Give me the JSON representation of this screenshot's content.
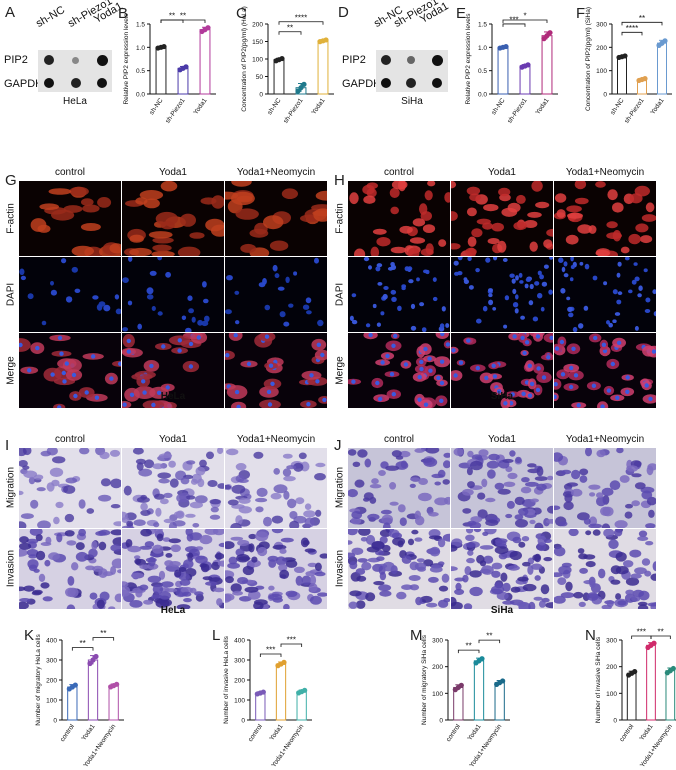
{
  "panels": {
    "A": {
      "letter": "A",
      "rows": [
        "PIP2",
        "GAPDH"
      ],
      "cols": [
        "sh-NC",
        "sh-Piezo1",
        "Yoda1"
      ],
      "cell": "HeLa"
    },
    "D": {
      "letter": "D",
      "rows": [
        "PIP2",
        "GAPDH"
      ],
      "cols": [
        "sh-NC",
        "sh-Piezo1",
        "Yoda1"
      ],
      "cell": "SiHa"
    },
    "G": {
      "letter": "G",
      "cols": [
        "control",
        "Yoda1",
        "Yoda1+Neomycin"
      ],
      "rows": [
        "F-actin",
        "DAPI",
        "Merge"
      ],
      "cell": "HeLa"
    },
    "H": {
      "letter": "H",
      "cols": [
        "control",
        "Yoda1",
        "Yoda1+Neomycin"
      ],
      "rows": [
        "F-actin",
        "DAPI",
        "Merge"
      ],
      "cell": "SiHa"
    },
    "I": {
      "letter": "I",
      "cols": [
        "control",
        "Yoda1",
        "Yoda1+Neomycin"
      ],
      "rows": [
        "Migration",
        "Invasion"
      ],
      "cell": "HeLa"
    },
    "J": {
      "letter": "J",
      "cols": [
        "control",
        "Yoda1",
        "Yoda1+Neomycin"
      ],
      "rows": [
        "Migration",
        "Invasion"
      ],
      "cell": "SiHa"
    }
  },
  "chart_data": [
    {
      "id": "B",
      "letter": "B",
      "type": "bar",
      "categories": [
        "sh-NC",
        "sh-Piezo1",
        "Yoda1"
      ],
      "values": [
        1.0,
        0.55,
        1.38
      ],
      "errors": [
        0.02,
        0.04,
        0.05
      ],
      "ylabel": "Relative PIP2 expression levels",
      "ylim": [
        0,
        1.5
      ],
      "yticks": [
        "0.0",
        "0.5",
        "1.0",
        "1.5"
      ],
      "colors": [
        "#222222",
        "#4a3aa8",
        "#b23a9b"
      ],
      "sig": [
        {
          "from": 0,
          "to": 1,
          "label": "**"
        },
        {
          "from": 0,
          "to": 2,
          "label": "**"
        }
      ]
    },
    {
      "id": "C",
      "letter": "C",
      "type": "bar",
      "categories": [
        "sh-NC",
        "sh-Piezo1",
        "Yoda1"
      ],
      "values": [
        98,
        18,
        152
      ],
      "errors": [
        4,
        12,
        3
      ],
      "ylabel": "Concentration of PIP2(pg/ml) (HeLa)",
      "ylim": [
        0,
        200
      ],
      "yticks": [
        "0",
        "50",
        "100",
        "150",
        "200"
      ],
      "colors": [
        "#222222",
        "#1f7a8c",
        "#e0b13a"
      ],
      "sig": [
        {
          "from": 0,
          "to": 1,
          "label": "**"
        },
        {
          "from": 0,
          "to": 2,
          "label": "****"
        }
      ]
    },
    {
      "id": "E",
      "letter": "E",
      "type": "bar",
      "categories": [
        "sh-NC",
        "sh-Piezo1",
        "Yoda1"
      ],
      "values": [
        1.0,
        0.6,
        1.25
      ],
      "errors": [
        0.02,
        0.03,
        0.08
      ],
      "ylabel": "Relative PIP2 expression levels",
      "ylim": [
        0,
        1.5
      ],
      "yticks": [
        "0.0",
        "0.5",
        "1.0",
        "1.5"
      ],
      "colors": [
        "#3a5fb0",
        "#6a3ab0",
        "#b02a7a"
      ],
      "sig": [
        {
          "from": 0,
          "to": 1,
          "label": "***"
        },
        {
          "from": 0,
          "to": 2,
          "label": "*"
        }
      ]
    },
    {
      "id": "F",
      "letter": "F",
      "type": "bar",
      "categories": [
        "sh-NC",
        "sh-Piezo1",
        "Yoda1"
      ],
      "values": [
        160,
        62,
        218
      ],
      "errors": [
        4,
        5,
        12
      ],
      "ylabel": "Concentration of PIP2(pg/ml) (SiHa)",
      "ylim": [
        0,
        300
      ],
      "yticks": [
        "0",
        "100",
        "200",
        "300"
      ],
      "colors": [
        "#222222",
        "#e0a050",
        "#6a9ad0"
      ],
      "sig": [
        {
          "from": 0,
          "to": 1,
          "label": "****"
        },
        {
          "from": 0,
          "to": 2,
          "label": "**"
        }
      ]
    },
    {
      "id": "K",
      "letter": "K",
      "type": "bar",
      "categories": [
        "control",
        "Yoda1",
        "Yoda1+Neomycin"
      ],
      "values": [
        165,
        300,
        172
      ],
      "errors": [
        12,
        22,
        8
      ],
      "ylabel": "Number of migratory HeLa cells",
      "ylim": [
        0,
        400
      ],
      "yticks": [
        "0",
        "100",
        "200",
        "300",
        "400"
      ],
      "colors": [
        "#3a6ab8",
        "#8a4ab0",
        "#b050a8"
      ],
      "sig": [
        {
          "from": 0,
          "to": 1,
          "label": "**"
        },
        {
          "from": 1,
          "to": 2,
          "label": "**"
        }
      ]
    },
    {
      "id": "L",
      "letter": "L",
      "type": "bar",
      "categories": [
        "control",
        "Yoda1",
        "Yoda1+Neomycin"
      ],
      "values": [
        135,
        280,
        142
      ],
      "errors": [
        6,
        10,
        8
      ],
      "ylabel": "Number of invasive HeLa cells",
      "ylim": [
        0,
        400
      ],
      "yticks": [
        "0",
        "100",
        "200",
        "300",
        "400"
      ],
      "colors": [
        "#7a5ab8",
        "#e0a030",
        "#40b0a8"
      ],
      "sig": [
        {
          "from": 0,
          "to": 1,
          "label": "***"
        },
        {
          "from": 1,
          "to": 2,
          "label": "***"
        }
      ]
    },
    {
      "id": "M",
      "letter": "M",
      "type": "bar",
      "categories": [
        "control",
        "Yoda1",
        "Yoda1+Neomycin"
      ],
      "values": [
        122,
        222,
        140
      ],
      "errors": [
        10,
        10,
        8
      ],
      "ylabel": "Number of migratory SiHa cells",
      "ylim": [
        0,
        300
      ],
      "yticks": [
        "0",
        "100",
        "200",
        "300"
      ],
      "colors": [
        "#7a3a6a",
        "#1a8a9a",
        "#1a6a8a"
      ],
      "sig": [
        {
          "from": 0,
          "to": 1,
          "label": "**"
        },
        {
          "from": 1,
          "to": 2,
          "label": "**"
        }
      ]
    },
    {
      "id": "N",
      "letter": "N",
      "type": "bar",
      "categories": [
        "control",
        "Yoda1",
        "Yoda1+Neomycin"
      ],
      "values": [
        175,
        280,
        185
      ],
      "errors": [
        8,
        10,
        10
      ],
      "ylabel": "Number of invasive SiHa cells",
      "ylim": [
        0,
        300
      ],
      "yticks": [
        "0",
        "100",
        "200",
        "300"
      ],
      "colors": [
        "#222222",
        "#d02a6a",
        "#2a8a7a"
      ],
      "sig": [
        {
          "from": 0,
          "to": 1,
          "label": "***"
        },
        {
          "from": 1,
          "to": 2,
          "label": "**"
        }
      ]
    }
  ],
  "colors": {
    "stain_red": "#c0281e",
    "stain_blue": "#2a4ad0",
    "crystal_violet": "#5a4ab0",
    "transwell_bg": "#d8d4e4"
  }
}
